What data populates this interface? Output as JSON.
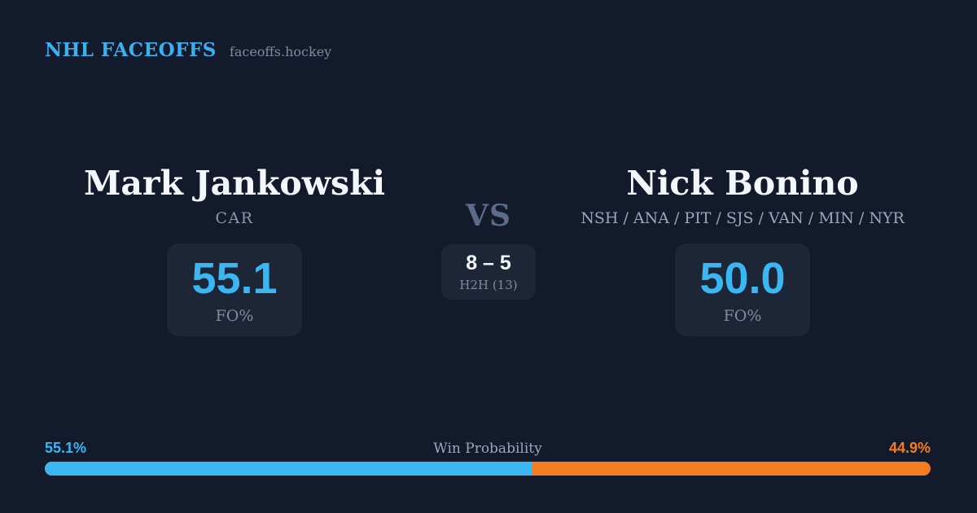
{
  "header": {
    "brand": "NHL FACEOFFS",
    "domain": "faceoffs.hockey"
  },
  "matchup": {
    "vs_label": "VS",
    "h2h": {
      "score": "8 – 5",
      "label": "H2H (13)"
    },
    "player_left": {
      "name": "Mark Jankowski",
      "teams": "CAR",
      "fo_value": "55.1",
      "fo_label": "FO%"
    },
    "player_right": {
      "name": "Nick Bonino",
      "teams": "NSH / ANA / PIT / SJS / VAN / MIN / NYR",
      "fo_value": "50.0",
      "fo_label": "FO%"
    }
  },
  "win_probability": {
    "title": "Win Probability",
    "left_label": "55.1%",
    "right_label": "44.9%",
    "left_value": 55.1,
    "right_value": 44.9
  },
  "colors": {
    "background": "#121a2b",
    "card": "#1d2637",
    "accent_blue": "#3ab7f3",
    "accent_orange": "#f57d1f",
    "brand_blue": "#3cb0ee"
  }
}
